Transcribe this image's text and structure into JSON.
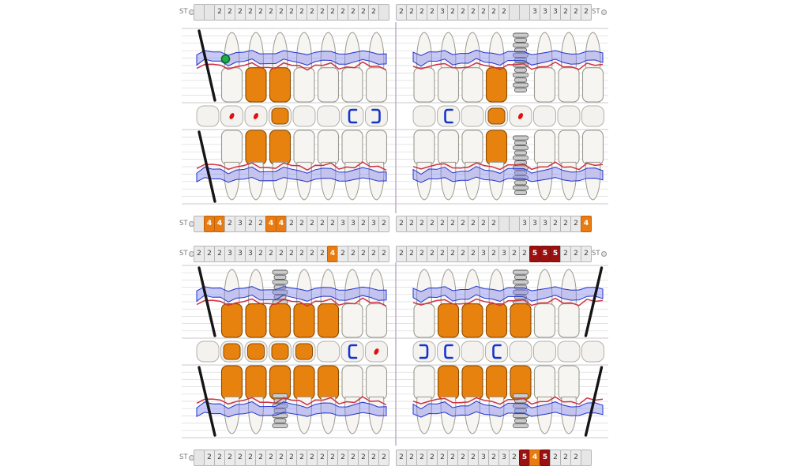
{
  "colors": {
    "accent_orange": "#e8820e",
    "dark_red": "#9b1111",
    "grid": "#dadada",
    "divider": "#b9a8c6",
    "tooth_fill": "#f7f5f1",
    "tooth_stroke": "#9a9a90",
    "red_line": "#cc3344",
    "blue_line": "#2233cc",
    "band_fill": "rgba(130,135,235,0.45)",
    "implant_gray": "#cbcbcb",
    "cell_bg": "#ebebeb"
  },
  "strips": [
    {
      "id": "strip-1",
      "name": "upper-buccal-pocket-depths",
      "left_label": "ST",
      "right_label": "ST",
      "left": [
        "",
        "",
        "2",
        "2",
        "2",
        "2",
        "2",
        "2",
        "2",
        "2",
        "2",
        "2",
        "2",
        "2",
        "2",
        "2",
        "2",
        "2",
        ""
      ],
      "right": [
        "2",
        "2",
        "2",
        "2",
        "3",
        "2",
        "2",
        "2",
        "2",
        "2",
        "2",
        "",
        "",
        "3",
        "3",
        "3",
        "2",
        "2",
        "2"
      ]
    },
    {
      "id": "strip-2",
      "name": "upper-palatal-pocket-depths",
      "left_label": "ST",
      "right_label": "",
      "left": [
        "",
        "4",
        "4",
        "2",
        "3",
        "2",
        "2",
        "4",
        "4",
        "2",
        "2",
        "2",
        "2",
        "2",
        "3",
        "3",
        "2",
        "3",
        "2"
      ],
      "right": [
        "2",
        "2",
        "2",
        "2",
        "2",
        "2",
        "2",
        "2",
        "2",
        "2",
        "",
        "",
        "3",
        "3",
        "3",
        "2",
        "2",
        "2",
        "4"
      ]
    },
    {
      "id": "strip-3",
      "name": "lower-lingual-pocket-depths",
      "left_label": "ST",
      "right_label": "ST",
      "left": [
        "2",
        "2",
        "2",
        "3",
        "3",
        "3",
        "2",
        "2",
        "2",
        "2",
        "2",
        "2",
        "2",
        "4",
        "2",
        "2",
        "2",
        "2",
        "2"
      ],
      "right": [
        "2",
        "2",
        "2",
        "2",
        "2",
        "2",
        "2",
        "2",
        "3",
        "2",
        "3",
        "2",
        "2",
        "5",
        "5",
        "5",
        "2",
        "2",
        "2"
      ]
    },
    {
      "id": "strip-4",
      "name": "lower-buccal-pocket-depths",
      "left_label": "ST",
      "right_label": "",
      "left": [
        "",
        "2",
        "2",
        "2",
        "2",
        "2",
        "2",
        "2",
        "2",
        "2",
        "2",
        "2",
        "2",
        "2",
        "2",
        "2",
        "2",
        "2",
        "2"
      ],
      "right": [
        "2",
        "2",
        "2",
        "2",
        "2",
        "2",
        "2",
        "2",
        "3",
        "2",
        "3",
        "2",
        "5",
        "4",
        "5",
        "2",
        "2",
        "2",
        ""
      ]
    }
  ],
  "panels": [
    {
      "name": "upper-arch",
      "rows": [
        {
          "name": "buccal",
          "dir": "crown-down",
          "left": [
            "missing",
            "normal+green",
            "crown",
            "crown",
            "normal",
            "normal",
            "normal",
            "normal"
          ],
          "right": [
            "normal",
            "normal",
            "normal",
            "crown",
            "implant",
            "normal",
            "normal",
            "normal"
          ]
        },
        {
          "name": "palatal",
          "dir": "crown-up",
          "left": [
            "missing",
            "normal",
            "crown",
            "crown",
            "normal",
            "normal",
            "normal",
            "normal"
          ],
          "right": [
            "normal",
            "normal",
            "normal",
            "crown",
            "implant",
            "normal",
            "normal",
            "normal"
          ]
        }
      ],
      "occlusal": {
        "left": [
          "plain",
          "red-dot",
          "red-dot",
          "crown",
          "plain",
          "plain",
          "bracket-open",
          "bracket-close"
        ],
        "right": [
          "plain",
          "bracket-open",
          "plain",
          "crown",
          "red-dot",
          "plain",
          "plain",
          "plain"
        ]
      }
    },
    {
      "name": "lower-arch",
      "rows": [
        {
          "name": "lingual",
          "dir": "crown-down",
          "left": [
            "missing",
            "crown",
            "crown",
            "implant-crown",
            "crown",
            "crown",
            "normal",
            "normal"
          ],
          "right": [
            "normal",
            "crown",
            "crown",
            "crown",
            "implant-crown",
            "normal",
            "normal",
            "missing"
          ]
        },
        {
          "name": "buccal",
          "dir": "crown-up",
          "left": [
            "missing",
            "crown",
            "crown",
            "implant-crown",
            "crown",
            "crown",
            "normal",
            "normal"
          ],
          "right": [
            "normal",
            "crown",
            "crown",
            "crown",
            "implant-crown",
            "normal",
            "normal",
            "missing"
          ]
        }
      ],
      "occlusal": {
        "left": [
          "plain",
          "crown",
          "crown",
          "crown",
          "crown",
          "plain",
          "bracket-open",
          "red-dot"
        ],
        "right": [
          "bracket-close",
          "bracket-open",
          "plain",
          "bracket-open",
          "plain",
          "plain",
          "plain",
          "plain"
        ]
      }
    }
  ]
}
